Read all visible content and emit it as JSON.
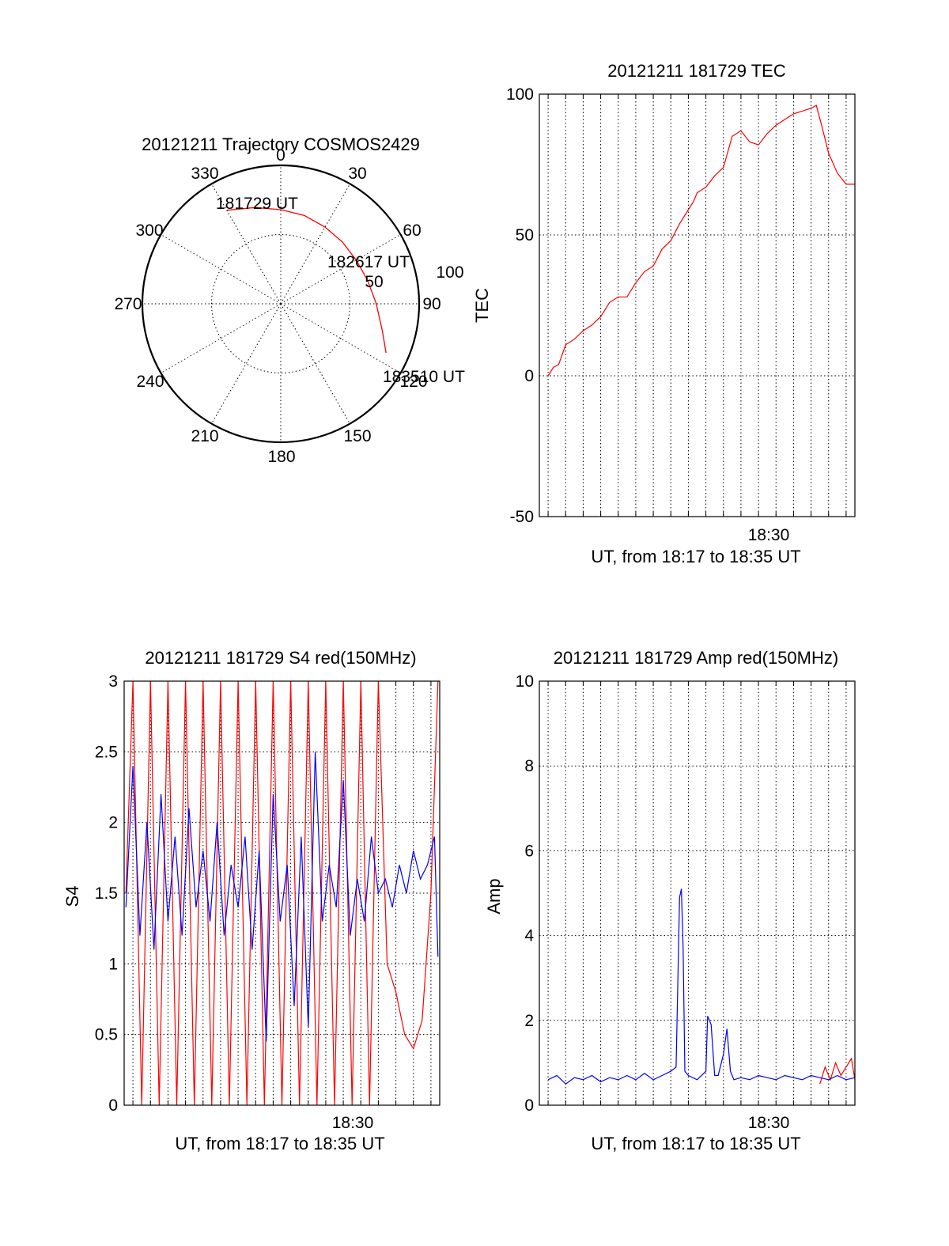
{
  "chart_data": [
    {
      "type": "polar",
      "title": "20121211 Trajectory COSMOS2429",
      "angle_labels": [
        "0",
        "30",
        "60",
        "90",
        "120",
        "150",
        "180",
        "210",
        "240",
        "270",
        "300",
        "330"
      ],
      "radial_labels": [
        "50",
        "100"
      ],
      "trajectory": {
        "color": "#ff0000",
        "points": [
          {
            "az": 330,
            "r": 78
          },
          {
            "az": 345,
            "r": 72
          },
          {
            "az": 0,
            "r": 68
          },
          {
            "az": 15,
            "r": 66
          },
          {
            "az": 30,
            "r": 64
          },
          {
            "az": 45,
            "r": 63
          },
          {
            "az": 60,
            "r": 63
          },
          {
            "az": 75,
            "r": 65
          },
          {
            "az": 90,
            "r": 69
          },
          {
            "az": 105,
            "r": 76
          },
          {
            "az": 115,
            "r": 84
          }
        ],
        "labels": [
          "181729 UT",
          "182617 UT",
          "183510 UT"
        ]
      }
    },
    {
      "type": "line",
      "title": "20121211 181729 TEC",
      "ylabel": "TEC",
      "xlabel": "UT, from 18:17 to 18:35 UT",
      "x_tick_label": "18:30",
      "xlim": [
        17.5,
        35.5
      ],
      "ylim": [
        -50,
        100
      ],
      "y_ticks": [
        "100",
        "50",
        "0",
        "-50"
      ],
      "series": [
        {
          "color": "#ff0000",
          "x": [
            18.0,
            18.3,
            18.6,
            19.0,
            19.5,
            20.0,
            20.5,
            21.0,
            21.5,
            22.0,
            22.5,
            23.0,
            23.5,
            24.0,
            24.5,
            25.0,
            25.5,
            26.0,
            26.3,
            26.5,
            27.0,
            27.5,
            28.0,
            28.5,
            29.0,
            29.5,
            30.0,
            30.5,
            31.0,
            31.5,
            32.0,
            32.5,
            33.0,
            33.3,
            33.6,
            34.0,
            34.5,
            35.0,
            35.5
          ],
          "y": [
            0,
            3,
            4,
            11,
            13,
            16,
            18,
            21,
            26,
            28,
            28,
            33,
            37,
            39,
            45,
            48,
            54,
            59,
            62,
            65,
            67,
            71,
            74,
            85,
            87,
            83,
            82,
            86,
            89,
            91,
            93,
            94,
            95,
            96,
            89,
            79,
            72,
            68,
            68
          ]
        }
      ]
    },
    {
      "type": "line",
      "title": "20121211 181729 S4 red(150MHz)",
      "ylabel": "S4",
      "xlabel": "UT, from 18:17 to 18:35 UT",
      "x_tick_label": "18:30",
      "xlim": [
        17.5,
        35.5
      ],
      "ylim": [
        0,
        3
      ],
      "y_ticks": [
        "3",
        "2.5",
        "2",
        "1.5",
        "1",
        "0.5",
        "0"
      ],
      "series": [
        {
          "color": "#ff0000",
          "x": [
            17.6,
            18.0,
            18.5,
            19.0,
            19.5,
            20.0,
            20.5,
            21.0,
            21.5,
            22.0,
            22.5,
            23.0,
            23.5,
            24.0,
            24.5,
            25.0,
            25.5,
            26.0,
            26.5,
            27.0,
            27.5,
            28.0,
            28.5,
            29.0,
            29.5,
            30.0,
            30.5,
            31.0,
            31.5,
            32.0,
            32.5,
            33.0,
            33.5,
            34.0,
            34.5,
            35.0,
            35.4
          ],
          "y": [
            1.5,
            3.0,
            0.0,
            3.0,
            0.0,
            3.0,
            0.0,
            3.0,
            0.0,
            3.0,
            0.0,
            3.0,
            0.0,
            3.0,
            0.0,
            3.0,
            0.0,
            3.0,
            0.0,
            3.0,
            0.0,
            3.0,
            0.0,
            3.0,
            0.0,
            3.0,
            0.0,
            3.0,
            0.0,
            3.0,
            1.0,
            0.8,
            0.5,
            0.4,
            0.6,
            1.5,
            3.0
          ]
        },
        {
          "color": "#0000ff",
          "x": [
            17.6,
            18.0,
            18.4,
            18.8,
            19.2,
            19.6,
            20.0,
            20.4,
            20.8,
            21.2,
            21.6,
            22.0,
            22.4,
            22.8,
            23.2,
            23.6,
            24.0,
            24.4,
            24.8,
            25.2,
            25.6,
            26.0,
            26.4,
            26.8,
            27.2,
            27.6,
            28.0,
            28.4,
            28.8,
            29.2,
            29.6,
            30.0,
            30.4,
            30.8,
            31.2,
            31.6,
            32.0,
            32.4,
            32.8,
            33.2,
            33.6,
            34.0,
            34.4,
            34.8,
            35.2,
            35.4
          ],
          "y": [
            1.4,
            2.4,
            1.2,
            2.0,
            1.1,
            2.2,
            1.3,
            1.9,
            1.2,
            2.1,
            1.4,
            1.8,
            1.3,
            2.0,
            1.2,
            1.7,
            1.4,
            1.9,
            1.1,
            1.8,
            0.45,
            2.2,
            1.3,
            1.7,
            0.7,
            1.9,
            0.55,
            2.5,
            1.3,
            1.7,
            1.4,
            2.3,
            1.2,
            1.6,
            1.3,
            1.9,
            1.5,
            1.6,
            1.4,
            1.7,
            1.5,
            1.8,
            1.6,
            1.7,
            1.9,
            1.05
          ]
        }
      ]
    },
    {
      "type": "line",
      "title": "20121211 181729 Amp red(150MHz)",
      "ylabel": "Amp",
      "xlabel": "UT, from 18:17 to 18:35 UT",
      "x_tick_label": "18:30",
      "xlim": [
        17.5,
        35.5
      ],
      "ylim": [
        0,
        10
      ],
      "y_ticks": [
        "10",
        "8",
        "6",
        "4",
        "2",
        "0"
      ],
      "series": [
        {
          "color": "#ff0000",
          "x": [
            33.5,
            33.8,
            34.1,
            34.4,
            34.7,
            35.0,
            35.3,
            35.5
          ],
          "y": [
            0.5,
            0.9,
            0.6,
            1.0,
            0.7,
            0.9,
            1.1,
            0.6
          ]
        },
        {
          "color": "#0000ff",
          "x": [
            18.0,
            18.5,
            19.0,
            19.5,
            20.0,
            20.5,
            21.0,
            21.5,
            22.0,
            22.5,
            23.0,
            23.5,
            24.0,
            24.5,
            25.0,
            25.3,
            25.5,
            25.6,
            25.7,
            25.8,
            26.0,
            26.5,
            27.0,
            27.1,
            27.3,
            27.5,
            27.7,
            28.0,
            28.2,
            28.4,
            28.6,
            29.0,
            29.5,
            30.0,
            30.5,
            31.0,
            31.5,
            32.0,
            32.5,
            33.0,
            33.5,
            34.0,
            34.5,
            35.0,
            35.5
          ],
          "y": [
            0.6,
            0.7,
            0.5,
            0.65,
            0.6,
            0.7,
            0.55,
            0.65,
            0.6,
            0.7,
            0.6,
            0.75,
            0.6,
            0.7,
            0.8,
            0.9,
            4.9,
            5.1,
            3.7,
            0.8,
            0.7,
            0.6,
            0.8,
            2.1,
            1.9,
            0.7,
            0.7,
            1.2,
            1.8,
            0.8,
            0.6,
            0.65,
            0.6,
            0.7,
            0.65,
            0.6,
            0.7,
            0.65,
            0.6,
            0.7,
            0.65,
            0.6,
            0.7,
            0.6,
            0.65
          ]
        }
      ]
    }
  ]
}
